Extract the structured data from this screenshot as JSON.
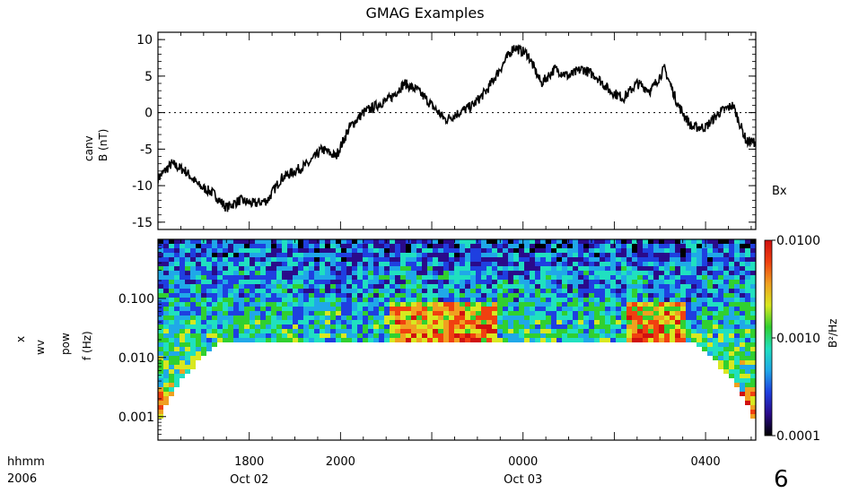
{
  "figure": {
    "title": "GMAG Examples",
    "page_number": "6",
    "time_axis": {
      "row_labels": [
        "hhmm",
        "2006"
      ],
      "ticks": [
        {
          "time": "1800",
          "date": "Oct 02",
          "hour": 18
        },
        {
          "time": "2000",
          "date": "",
          "hour": 20
        },
        {
          "time": "0000",
          "date": "Oct 03",
          "hour": 24
        },
        {
          "time": "0400",
          "date": "",
          "hour": 28
        }
      ],
      "range_hours": [
        16.0,
        29.1
      ]
    }
  },
  "chart_data": [
    {
      "type": "line",
      "panel": "top",
      "ylabel": [
        "canv",
        "B (nT)"
      ],
      "series": [
        {
          "name": "Bx"
        }
      ],
      "ylim": [
        -16,
        11
      ],
      "yticks": [
        10,
        5,
        0,
        -5,
        -10,
        -15
      ],
      "zero_line": "dotted",
      "x_hours": [
        16.0,
        16.3,
        16.6,
        16.9,
        17.2,
        17.5,
        17.8,
        18.1,
        18.4,
        18.7,
        19.0,
        19.3,
        19.6,
        19.9,
        20.2,
        20.5,
        20.8,
        21.1,
        21.4,
        21.7,
        22.0,
        22.3,
        22.6,
        22.9,
        23.2,
        23.5,
        23.8,
        24.1,
        24.4,
        24.7,
        25.0,
        25.3,
        25.6,
        25.9,
        26.2,
        26.5,
        26.8,
        27.1,
        27.4,
        27.7,
        28.0,
        28.3,
        28.6,
        28.9,
        29.1
      ],
      "values": [
        -9,
        -7,
        -8,
        -10,
        -11,
        -13,
        -12,
        -12.5,
        -12,
        -9,
        -8,
        -7,
        -5,
        -6,
        -2,
        0,
        1,
        2,
        4,
        3,
        1,
        -1,
        0,
        1,
        3,
        6,
        9,
        8,
        4,
        6,
        5,
        6,
        5,
        3,
        2,
        4,
        3,
        6,
        1,
        -2,
        -2,
        0,
        1,
        -4,
        -4
      ]
    },
    {
      "type": "heatmap",
      "panel": "bottom",
      "ylabel": [
        "x",
        "wv",
        "pow",
        "f (Hz)"
      ],
      "yscale": "log",
      "ylim": [
        0.0004,
        1.0
      ],
      "yticks": [
        "0.100",
        "0.010",
        "0.001"
      ],
      "colorbar": {
        "scale": "log",
        "range": [
          0.0001,
          0.01
        ],
        "ticks": [
          "0.0100",
          "0.0010",
          "0.0001"
        ],
        "label": "B²/Hz",
        "colors": [
          "#000000",
          "#2a0a8a",
          "#1f3fe0",
          "#20a8e8",
          "#20e0c0",
          "#30d030",
          "#d8e820",
          "#f0a020",
          "#f04010",
          "#d01010"
        ]
      },
      "description": "Wavelet power spectrum of Bx with cone of influence"
    }
  ]
}
